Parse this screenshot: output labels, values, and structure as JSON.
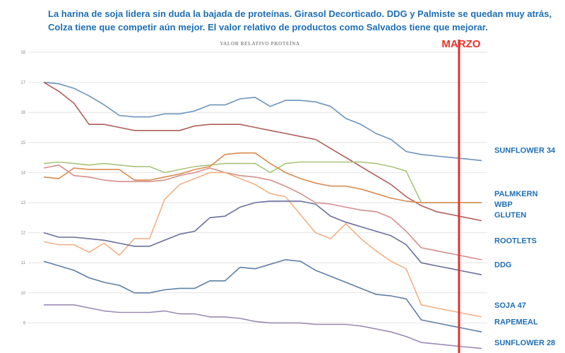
{
  "headline": {
    "line1": "La harina de soja lidera sin duda la bajada de proteínas. Girasol Decorticado. DDG y Palmiste se quedan muy atrás,",
    "line2": "Colza tiene que competir aún mejor. El valor relativo de productos como Salvados tiene que mejorar."
  },
  "chart_data": {
    "type": "line",
    "title": "VALOR RELATIVO PROTEÍNA",
    "ylim": [
      8,
      18
    ],
    "yticks": [
      9,
      10,
      11,
      12,
      13,
      14,
      15,
      16,
      17,
      18
    ],
    "grid": true,
    "marker": {
      "label": "MARZO",
      "x": 27.5,
      "color": "#e8312a"
    },
    "x": [
      0,
      1,
      2,
      3,
      4,
      5,
      6,
      7,
      8,
      9,
      10,
      11,
      12,
      13,
      14,
      15,
      16,
      17,
      18,
      19,
      20,
      21,
      22,
      23,
      24,
      25,
      26,
      27,
      28,
      29
    ],
    "labels": [
      {
        "text": "SUNFLOWER 34",
        "y": 14.75
      },
      {
        "text": "PALMKERN",
        "y": 13.3
      },
      {
        "text": "WBP",
        "y": 12.95
      },
      {
        "text": "GLUTEN",
        "y": 12.6
      },
      {
        "text": "ROOTLETS",
        "y": 11.75
      },
      {
        "text": "DDG",
        "y": 10.95
      },
      {
        "text": "SOJA 47",
        "y": 9.6
      },
      {
        "text": "RAPEMEAL",
        "y": 9.05
      },
      {
        "text": "SUNFLOWER 28",
        "y": 8.35
      }
    ],
    "series": [
      {
        "color": "#6e93bd",
        "values": [
          17.0,
          16.95,
          16.8,
          16.55,
          16.25,
          15.9,
          15.85,
          15.85,
          15.95,
          15.95,
          16.05,
          16.25,
          16.25,
          16.45,
          16.5,
          16.2,
          16.4,
          16.4,
          16.35,
          16.2,
          15.8,
          15.6,
          15.3,
          15.1,
          14.7,
          14.6,
          14.55,
          14.5,
          14.45,
          14.4
        ]
      },
      {
        "color": "#b05e58",
        "values": [
          17.0,
          16.7,
          16.3,
          15.6,
          15.6,
          15.5,
          15.4,
          15.4,
          15.4,
          15.4,
          15.55,
          15.6,
          15.6,
          15.6,
          15.5,
          15.4,
          15.3,
          15.2,
          15.1,
          14.8,
          14.5,
          14.2,
          13.9,
          13.6,
          13.2,
          12.9,
          12.7,
          12.6,
          12.5,
          12.4
        ]
      },
      {
        "color": "#a9c47a",
        "values": [
          14.3,
          14.35,
          14.3,
          14.25,
          14.3,
          14.25,
          14.2,
          14.2,
          14.0,
          14.1,
          14.2,
          14.25,
          14.3,
          14.3,
          14.3,
          14.0,
          14.3,
          14.35,
          14.35,
          14.35,
          14.35,
          14.35,
          14.3,
          14.2,
          14.05,
          13.0,
          13.0,
          13.0,
          13.0,
          13.0
        ]
      },
      {
        "color": "#d98a4e",
        "values": [
          13.85,
          13.8,
          14.15,
          14.1,
          14.1,
          14.1,
          13.75,
          13.75,
          13.85,
          13.95,
          14.1,
          14.2,
          14.6,
          14.65,
          14.65,
          14.3,
          14.0,
          13.8,
          13.65,
          13.55,
          13.55,
          13.45,
          13.3,
          13.15,
          13.05,
          13.0,
          13.0,
          13.0,
          13.0,
          13.0
        ]
      },
      {
        "color": "#d48f8a",
        "values": [
          14.15,
          14.25,
          13.9,
          13.85,
          13.75,
          13.7,
          13.7,
          13.7,
          13.75,
          13.9,
          14.0,
          14.15,
          14.0,
          13.9,
          13.85,
          13.75,
          13.55,
          13.3,
          13.0,
          12.95,
          12.85,
          12.75,
          12.7,
          12.5,
          12.05,
          11.5,
          11.4,
          11.3,
          11.2,
          11.1
        ]
      },
      {
        "color": "#f2b083",
        "values": [
          11.7,
          11.6,
          11.6,
          11.35,
          11.65,
          11.25,
          11.8,
          11.8,
          13.1,
          13.6,
          13.8,
          14.0,
          14.0,
          13.8,
          13.6,
          13.3,
          13.2,
          12.6,
          12.0,
          11.8,
          12.3,
          11.8,
          11.4,
          11.05,
          10.8,
          9.6,
          9.5,
          9.4,
          9.3,
          9.2
        ]
      },
      {
        "color": "#6a6f9c",
        "values": [
          12.0,
          11.85,
          11.85,
          11.8,
          11.75,
          11.65,
          11.55,
          11.55,
          11.75,
          11.95,
          12.05,
          12.5,
          12.55,
          12.85,
          13.0,
          13.05,
          13.05,
          13.05,
          12.95,
          12.55,
          12.35,
          12.2,
          12.05,
          11.9,
          11.6,
          11.0,
          10.9,
          10.8,
          10.7,
          10.6
        ]
      },
      {
        "color": "#5e7fa6",
        "values": [
          11.05,
          10.9,
          10.75,
          10.5,
          10.35,
          10.25,
          10.0,
          10.0,
          10.1,
          10.15,
          10.15,
          10.4,
          10.4,
          10.85,
          10.8,
          10.95,
          11.1,
          11.05,
          10.75,
          10.55,
          10.35,
          10.15,
          9.95,
          9.9,
          9.8,
          9.1,
          9.0,
          8.9,
          8.8,
          8.7
        ]
      },
      {
        "color": "#9a8bb3",
        "values": [
          9.6,
          9.6,
          9.6,
          9.5,
          9.4,
          9.35,
          9.35,
          9.35,
          9.4,
          9.3,
          9.3,
          9.2,
          9.2,
          9.15,
          9.05,
          9.0,
          9.0,
          9.0,
          8.95,
          8.95,
          8.95,
          8.9,
          8.8,
          8.7,
          8.55,
          8.35,
          8.3,
          8.25,
          8.2,
          8.15
        ]
      }
    ]
  }
}
